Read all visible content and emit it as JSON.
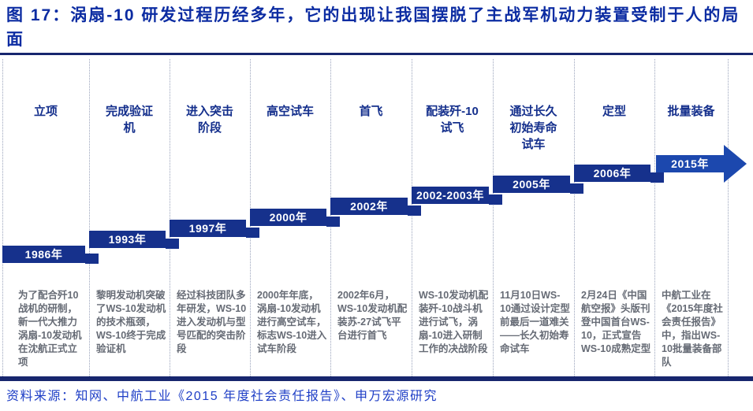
{
  "title": "图 17：涡扇-10 研发过程历经多年，它的出现让我国摆脱了主战军机动力装置受制于人的局面",
  "source": "资料来源：知网、中航工业《2015 年度社会责任报告》、申万宏源研究",
  "colors": {
    "title_text": "#0c2ca2",
    "header_text": "#142f8c",
    "step_bar": "#16318c",
    "final_arrow": "#1c48ae",
    "desc_text": "#666b75",
    "source_text": "#1e3ec6",
    "rule": "#17266e",
    "separator_dots": "#9aa3bb"
  },
  "timeline": {
    "columns": [
      {
        "header": "立项",
        "year": "1986年",
        "desc": "为了配合歼10战机的研制，新一代大推力涡扇-10发动机在沈航正式立项"
      },
      {
        "header": "完成验证\n机",
        "year": "1993年",
        "desc": "黎明发动机突破了WS-10发动机的技术瓶颈，WS-10终于完成验证机"
      },
      {
        "header": "进入突击\n阶段",
        "year": "1997年",
        "desc": "经过科技团队多年研发，WS-10进入发动机与型号匹配的突击阶段"
      },
      {
        "header": "高空试车",
        "year": "2000年",
        "desc": "2000年年底，涡扇-10发动机进行高空试车，标志WS-10进入试车阶段"
      },
      {
        "header": "首飞",
        "year": "2002年",
        "desc": "2002年6月，WS-10发动机配装苏-27试飞平台进行首飞"
      },
      {
        "header": "配装歼-10\n试飞",
        "year": "2002-2003年",
        "desc": "WS-10发动机配装歼-10战斗机进行试飞，涡扇-10进入研制工作的决战阶段"
      },
      {
        "header": "通过长久\n初始寿命\n试车",
        "year": "2005年",
        "desc": "11月10日WS-10通过设计定型前最后一道难关——长久初始寿命试车"
      },
      {
        "header": "定型",
        "year": "2006年",
        "desc": "2月24日《中国航空报》头版刊登中国首台WS-10，正式宣告WS-10成熟定型"
      },
      {
        "header": "批量装备",
        "year": "2015年",
        "desc": "中航工业在《2015年度社会责任报告》中，指出WS-10批量装备部队",
        "final": true
      }
    ]
  }
}
